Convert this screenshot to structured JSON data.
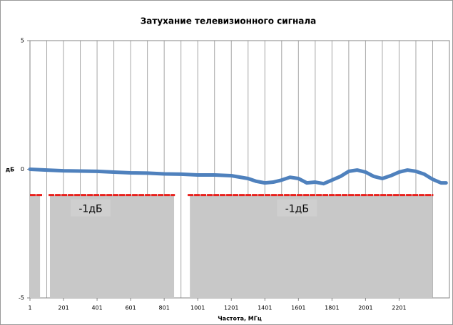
{
  "chart_data": {
    "type": "line",
    "title": "Затухание телевизионного сигнала",
    "xlabel": "Частота, МГц",
    "ylabel": "дБ",
    "xlim": [
      1,
      2501
    ],
    "ylim": [
      -5,
      5
    ],
    "xticks": [
      1,
      201,
      401,
      601,
      801,
      1001,
      1201,
      1401,
      1601,
      1801,
      2001,
      2201
    ],
    "yticks": [
      -5,
      0,
      5
    ],
    "xgrid": [
      101,
      201,
      301,
      401,
      501,
      601,
      701,
      801,
      901,
      1001,
      1101,
      1201,
      1301,
      1401,
      1501,
      1601,
      1701,
      1801,
      1901,
      2001,
      2101,
      2201,
      2301,
      2401
    ],
    "grid": true,
    "series": [
      {
        "color": "#4f81bd",
        "x": [
          1,
          101,
          201,
          301,
          401,
          501,
          601,
          701,
          801,
          901,
          1001,
          1101,
          1201,
          1301,
          1351,
          1401,
          1451,
          1501,
          1551,
          1601,
          1651,
          1701,
          1751,
          1801,
          1851,
          1901,
          1951,
          2001,
          2051,
          2101,
          2151,
          2201,
          2251,
          2301,
          2351,
          2401,
          2451,
          2481
        ],
        "values": [
          0.0,
          -0.03,
          -0.06,
          -0.07,
          -0.08,
          -0.11,
          -0.14,
          -0.15,
          -0.18,
          -0.19,
          -0.22,
          -0.22,
          -0.25,
          -0.36,
          -0.47,
          -0.53,
          -0.5,
          -0.42,
          -0.31,
          -0.36,
          -0.53,
          -0.5,
          -0.56,
          -0.42,
          -0.28,
          -0.08,
          -0.03,
          -0.11,
          -0.28,
          -0.36,
          -0.25,
          -0.11,
          -0.03,
          -0.08,
          -0.19,
          -0.39,
          -0.53,
          -0.53
        ]
      }
    ],
    "reference_segments": [
      {
        "color": "#e8201c",
        "value": -1,
        "x": [
          1,
          78
        ]
      },
      {
        "color": "#e8201c",
        "value": -1,
        "x": [
          112,
          865
        ]
      },
      {
        "color": "#e8201c",
        "value": -1,
        "x": [
          941,
          2405
        ]
      }
    ],
    "bands": [
      {
        "color": "#c8c8c8",
        "x": [
          1,
          61
        ],
        "y": [
          -5,
          -1
        ]
      },
      {
        "color": "#c8c8c8",
        "x": [
          120,
          860
        ],
        "y": [
          -5,
          -1
        ],
        "label": "-1дБ"
      },
      {
        "color": "#c8c8c8",
        "x": [
          954,
          2401
        ],
        "y": [
          -5,
          -1
        ],
        "label": "-1дБ"
      }
    ]
  }
}
